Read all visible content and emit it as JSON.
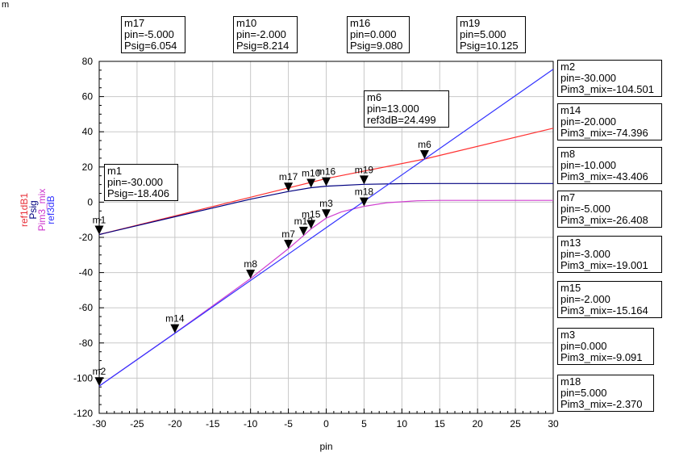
{
  "corner_mark": "m",
  "chart_data": {
    "type": "line",
    "xlabel": "pin",
    "xlim": [
      -30,
      30
    ],
    "ylim": [
      -120,
      80
    ],
    "xticks": [
      -30,
      -25,
      -20,
      -15,
      -10,
      -5,
      0,
      5,
      10,
      15,
      20,
      25,
      30
    ],
    "yticks": [
      80,
      60,
      40,
      20,
      0,
      -20,
      -40,
      -60,
      -80,
      -100,
      -120
    ],
    "grid": true,
    "ylabels": [
      {
        "text": "ref1dB1",
        "color": "#e8303a"
      },
      {
        "text": "Psig",
        "color": "#000080"
      },
      {
        "text": "Pim3_mix",
        "color": "#cc33cc"
      },
      {
        "text": "ref3dB",
        "color": "#3333ff"
      }
    ],
    "series": [
      {
        "name": "ref1dB1",
        "color": "#ff3030",
        "x": [
          -30,
          -20,
          -10,
          0,
          13,
          30
        ],
        "y": [
          -18.4,
          -7.8,
          2.8,
          13.4,
          24.5,
          42.0
        ]
      },
      {
        "name": "Psig",
        "color": "#000080",
        "x": [
          -30,
          -20,
          -10,
          -5,
          -2,
          0,
          5,
          10,
          15,
          20,
          25,
          30
        ],
        "y": [
          -18.406,
          -8.3,
          1.7,
          6.054,
          8.214,
          9.08,
          10.125,
          10.5,
          10.6,
          10.6,
          10.6,
          10.6
        ]
      },
      {
        "name": "Pim3_mix",
        "color": "#d040d0",
        "x": [
          -30,
          -20,
          -10,
          -5,
          -3,
          -2,
          0,
          2,
          5,
          8,
          12,
          15,
          20,
          30
        ],
        "y": [
          -104.501,
          -74.396,
          -43.406,
          -26.408,
          -19.001,
          -15.164,
          -9.091,
          -5.5,
          -2.37,
          -0.3,
          0.8,
          1.0,
          1.0,
          1.0
        ]
      },
      {
        "name": "ref3dB",
        "color": "#3333ff",
        "x": [
          -30,
          13,
          30
        ],
        "y": [
          -104.5,
          24.499,
          75.5
        ]
      }
    ],
    "markers": [
      {
        "name": "m1",
        "x": -30,
        "y": -18.406
      },
      {
        "name": "m2",
        "x": -30,
        "y": -104.501
      },
      {
        "name": "m14",
        "x": -20,
        "y": -74.396
      },
      {
        "name": "m8",
        "x": -10,
        "y": -43.406
      },
      {
        "name": "m7",
        "x": -5,
        "y": -26.408
      },
      {
        "name": "m13",
        "x": -3,
        "y": -19.001
      },
      {
        "name": "m15",
        "x": -2,
        "y": -15.164
      },
      {
        "name": "m3",
        "x": 0,
        "y": -9.091
      },
      {
        "name": "m18",
        "x": 5,
        "y": -2.37
      },
      {
        "name": "m17",
        "x": -5,
        "y": 6.054
      },
      {
        "name": "m10",
        "x": -2,
        "y": 8.214
      },
      {
        "name": "m16",
        "x": 0,
        "y": 9.08
      },
      {
        "name": "m19",
        "x": 5,
        "y": 10.125
      },
      {
        "name": "m6",
        "x": 13,
        "y": 24.499
      }
    ],
    "marker_boxes": [
      {
        "name": "m17",
        "lines": [
          "m17",
          "pin=-5.000",
          "Psig=6.054"
        ]
      },
      {
        "name": "m10",
        "lines": [
          "m10",
          "pin=-2.000",
          "Psig=8.214"
        ]
      },
      {
        "name": "m16",
        "lines": [
          "m16",
          "pin=0.000",
          "Psig=9.080"
        ]
      },
      {
        "name": "m19",
        "lines": [
          "m19",
          "pin=5.000",
          "Psig=10.125"
        ]
      },
      {
        "name": "m6",
        "lines": [
          "m6",
          "pin=13.000",
          "ref3dB=24.499"
        ]
      },
      {
        "name": "m1",
        "lines": [
          "m1",
          "pin=-30.000",
          "Psig=-18.406"
        ]
      },
      {
        "name": "m2",
        "lines": [
          "m2",
          "pin=-30.000",
          "Pim3_mix=-104.501"
        ]
      },
      {
        "name": "m14",
        "lines": [
          "m14",
          "pin=-20.000",
          "Pim3_mix=-74.396"
        ]
      },
      {
        "name": "m8",
        "lines": [
          "m8",
          "pin=-10.000",
          "Pim3_mix=-43.406"
        ]
      },
      {
        "name": "m7",
        "lines": [
          "m7",
          "pin=-5.000",
          "Pim3_mix=-26.408"
        ]
      },
      {
        "name": "m13",
        "lines": [
          "m13",
          "pin=-3.000",
          "Pim3_mix=-19.001"
        ]
      },
      {
        "name": "m15",
        "lines": [
          "m15",
          "pin=-2.000",
          "Pim3_mix=-15.164"
        ]
      },
      {
        "name": "m3",
        "lines": [
          "m3",
          "pin=0.000",
          "Pim3_mix=-9.091"
        ]
      },
      {
        "name": "m18",
        "lines": [
          "m18",
          "pin=5.000",
          "Pim3_mix=-2.370"
        ]
      }
    ]
  }
}
